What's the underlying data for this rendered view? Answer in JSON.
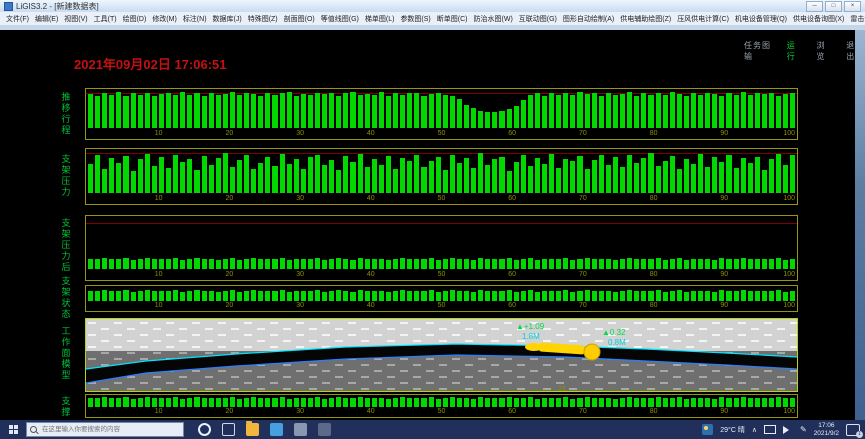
{
  "window": {
    "title": "LiGIS3.2 - [新建数据表]",
    "controls": {
      "minimize": "─",
      "maximize": "□",
      "close": "×"
    }
  },
  "menu": {
    "items": [
      "文件(F)",
      "编辑(E)",
      "视图(V)",
      "工具(T)",
      "绘图(D)",
      "修改(M)",
      "标注(N)",
      "数据库(J)",
      "特殊图(Z)",
      "剖面图(O)",
      "等值线图(G)",
      "梯单图(L)",
      "参数图(S)",
      "断单图(C)",
      "防治水图(W)",
      "互联动图(G)",
      "图形自动绘制(A)",
      "供电辅助绘图(Z)",
      "压风供电计算(C)",
      "机电设备管理(Q)",
      "供电设备询图(X)",
      "雷击计算结果(U)",
      "回采及定制设备询图(Y)"
    ]
  },
  "view_buttons": [
    {
      "label": "任务图输"
    },
    {
      "label": "运 行"
    },
    {
      "label": "浏 览"
    },
    {
      "label": "退 出"
    }
  ],
  "datetime_label": "2021年09月02日 17:06:51",
  "x_ticks": [
    10,
    20,
    30,
    40,
    50,
    60,
    70,
    80,
    90,
    100
  ],
  "small_values": [
    95,
    90,
    97,
    88,
    93,
    96,
    85,
    92,
    98,
    87,
    94,
    90,
    96,
    83,
    91,
    97,
    89,
    95,
    86,
    93,
    98,
    84,
    90,
    96,
    92,
    87,
    95,
    99,
    85,
    91,
    94,
    88,
    97,
    83,
    92,
    96,
    90,
    86,
    98,
    93,
    89,
    95,
    84,
    91,
    97,
    87,
    94,
    90,
    96,
    85,
    92,
    98,
    88,
    93,
    83,
    96,
    91,
    87,
    95,
    99,
    86,
    92,
    97,
    84,
    90,
    94,
    89,
    96,
    85,
    93,
    98,
    87,
    91,
    95,
    83,
    92,
    96,
    88,
    94,
    90,
    97,
    86,
    93,
    99,
    85,
    89,
    95,
    91,
    84,
    97,
    92,
    88,
    96,
    90,
    94,
    87,
    93,
    98,
    86,
    95
  ],
  "panels": [
    {
      "label": "推移行程",
      "type": "bar",
      "values": [
        95,
        88,
        97,
        92,
        99,
        90,
        96,
        93,
        98,
        89,
        94,
        97,
        91,
        99,
        93,
        96,
        90,
        98,
        92,
        95,
        100,
        91,
        97,
        94,
        89,
        98,
        93,
        96,
        99,
        90,
        95,
        92,
        98,
        94,
        97,
        89,
        96,
        100,
        91,
        95,
        93,
        99,
        90,
        97,
        92,
        96,
        98,
        89,
        94,
        97,
        93,
        90,
        80,
        65,
        55,
        48,
        45,
        44,
        46,
        52,
        62,
        78,
        92,
        96,
        90,
        98,
        93,
        97,
        91,
        99,
        94,
        96,
        89,
        98,
        92,
        95,
        100,
        90,
        97,
        93,
        96,
        91,
        99,
        94,
        88,
        97,
        92,
        98,
        95,
        90,
        96,
        93,
        99,
        91,
        97,
        94,
        98,
        90,
        95,
        97
      ]
    },
    {
      "label": "支架压力",
      "type": "bar",
      "values": [
        72,
        95,
        60,
        88,
        75,
        92,
        55,
        85,
        98,
        68,
        90,
        62,
        96,
        78,
        84,
        58,
        93,
        70,
        87,
        99,
        65,
        82,
        94,
        59,
        76,
        91,
        67,
        97,
        73,
        86,
        61,
        89,
        95,
        70,
        83,
        57,
        92,
        77,
        98,
        64,
        85,
        71,
        93,
        60,
        88,
        79,
        96,
        66,
        81,
        90,
        58,
        94,
        74,
        87,
        63,
        99,
        69,
        84,
        91,
        56,
        78,
        95,
        67,
        88,
        73,
        97,
        62,
        86,
        80,
        92,
        59,
        83,
        96,
        71,
        89,
        65,
        94,
        76,
        87,
        100,
        68,
        81,
        93,
        61,
        85,
        72,
        98,
        66,
        90,
        77,
        95,
        63,
        88,
        74,
        91,
        58,
        86,
        97,
        70,
        96
      ]
    },
    {
      "label": "支架压力后",
      "type": "bar",
      "values": "small"
    },
    {
      "label": "支架状态",
      "type": "bar",
      "values": "small"
    },
    {
      "label": "工作面模型",
      "type": "model",
      "annotations": {
        "left_green": "▲+1.09",
        "left_cyan": "1.8M",
        "right_green": "▲0.32",
        "right_cyan": "0.8M"
      }
    },
    {
      "label": "支撑",
      "type": "bar",
      "values": "small",
      "marker": "23"
    }
  ],
  "colors": {
    "bar": "#00d800",
    "frame": "#96960f",
    "threshold": "#7e0000",
    "tick": "#8f8f00",
    "panel_label": "#00c437",
    "datetime": "#c51010",
    "run_green": "#00d42a"
  },
  "taskbar": {
    "search_placeholder": "在这里输入你要搜索的内容",
    "app_icons": [
      {
        "name": "cortana-icon",
        "style": "circle",
        "color": "#e6f2ff"
      },
      {
        "name": "task-view-icon",
        "style": "outline",
        "color": "#cfd8e8"
      },
      {
        "name": "file-explorer-icon",
        "style": "folder",
        "color": "#f2b63c"
      },
      {
        "name": "paint3d-icon",
        "style": "square",
        "color": "#46a0e0"
      },
      {
        "name": "photos-icon",
        "style": "square",
        "color": "#8898b0"
      },
      {
        "name": "app-icon",
        "style": "square",
        "color": "#5a6a88"
      }
    ],
    "tray": {
      "weather": "29°C 晴",
      "time": "17:06",
      "date": "2021/9/2",
      "badge": "1"
    }
  }
}
